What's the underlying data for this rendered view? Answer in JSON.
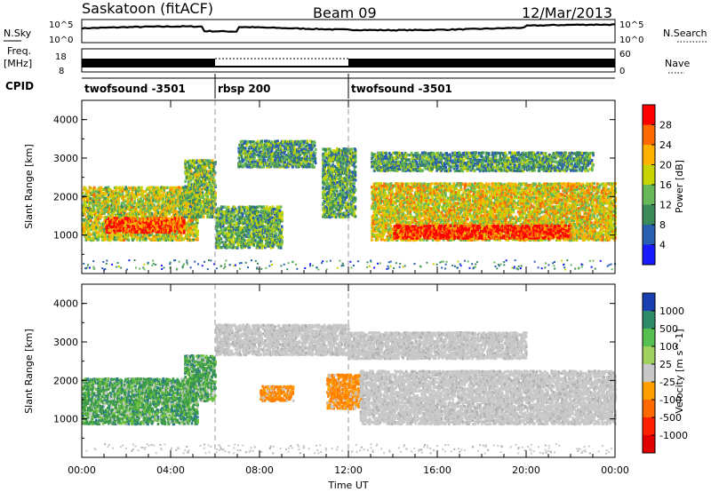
{
  "header": {
    "station": "Saskatoon (fitACF)",
    "beam": "Beam 09",
    "date": "12/Mar/2013"
  },
  "strips": {
    "nsky_label": "N.Sky",
    "nsky_ticks": [
      "10^5",
      "10^0"
    ],
    "nsearch_label": "N.Search",
    "nsearch_ticks": [
      "10^5",
      "10^0"
    ],
    "freq_label": "Freq.",
    "freq_unit": "[MHz]",
    "freq_ticks": [
      "18",
      "8"
    ],
    "nave_label": "Nave",
    "nave_ticks": [
      "60",
      "0"
    ],
    "cpid_label": "CPID",
    "cpid_segments": [
      {
        "start_hour": 0,
        "end_hour": 6,
        "label": "twofsound -3501"
      },
      {
        "start_hour": 6,
        "end_hour": 12,
        "label": "rbsp 200"
      },
      {
        "start_hour": 12,
        "end_hour": 24,
        "label": "twofsound -3501"
      }
    ]
  },
  "chart_data": [
    {
      "type": "heatmap",
      "title": "",
      "ylabel": "Slant Range [km]",
      "ylim": [
        0,
        4500
      ],
      "yticks": [
        "4000",
        "3000",
        "2000",
        "1000"
      ],
      "xlim": [
        0,
        24
      ],
      "colorbar_label": "Power [dB]",
      "colorbar_ticks": [
        "28",
        "24",
        "20",
        "16",
        "12",
        "8",
        "4"
      ],
      "colorbar_colors": [
        "#ff0000",
        "#ff6a00",
        "#ffb000",
        "#c8d400",
        "#68b85a",
        "#3b8a5a",
        "#2a5fb0",
        "#1a1aff"
      ],
      "echo_bands": [
        {
          "t0": 0.0,
          "t1": 5.2,
          "r0": 900,
          "r1": 2300,
          "level": 0.55
        },
        {
          "t0": 1.0,
          "t1": 4.6,
          "r0": 1100,
          "r1": 1500,
          "level": 0.85
        },
        {
          "t0": 4.6,
          "t1": 6.0,
          "r0": 1500,
          "r1": 3000,
          "level": 0.45
        },
        {
          "t0": 6.0,
          "t1": 9.0,
          "r0": 700,
          "r1": 1800,
          "level": 0.4
        },
        {
          "t0": 7.0,
          "t1": 10.5,
          "r0": 2800,
          "r1": 3500,
          "level": 0.35
        },
        {
          "t0": 10.8,
          "t1": 12.3,
          "r0": 1500,
          "r1": 3300,
          "level": 0.4
        },
        {
          "t0": 13.0,
          "t1": 24.0,
          "r0": 900,
          "r1": 2400,
          "level": 0.6
        },
        {
          "t0": 14.0,
          "t1": 22.0,
          "r0": 950,
          "r1": 1300,
          "level": 0.92
        },
        {
          "t0": 13.0,
          "t1": 23.0,
          "r0": 2700,
          "r1": 3200,
          "level": 0.35
        }
      ]
    },
    {
      "type": "heatmap",
      "title": "",
      "ylabel": "Slant Range [km]",
      "ylim": [
        0,
        4500
      ],
      "yticks": [
        "4000",
        "3000",
        "2000",
        "1000"
      ],
      "xlim": [
        0,
        24
      ],
      "xticks": [
        "00:00",
        "04:00",
        "08:00",
        "12:00",
        "16:00",
        "20:00",
        "00:00"
      ],
      "xlabel": "Time UT",
      "colorbar_label": "Velocity [m s^-1]",
      "colorbar_ticks": [
        "1000",
        "500",
        "100",
        "25",
        "-25",
        "-100",
        "-500",
        "-1000"
      ],
      "colorbar_colors": [
        "#1a3fb0",
        "#2f8a6a",
        "#55c050",
        "#a0d060",
        "#c8c8c8",
        "#ffa000",
        "#ff6a00",
        "#ff2000",
        "#e00000"
      ],
      "echo_bands": [
        {
          "t0": 0.0,
          "t1": 5.2,
          "r0": 900,
          "r1": 2100,
          "class": "pos"
        },
        {
          "t0": 4.6,
          "t1": 6.0,
          "r0": 1500,
          "r1": 2700,
          "class": "pos"
        },
        {
          "t0": 6.0,
          "t1": 12.0,
          "r0": 2700,
          "r1": 3500,
          "class": "ground"
        },
        {
          "t0": 11.0,
          "t1": 12.6,
          "r0": 1300,
          "r1": 2200,
          "class": "neg"
        },
        {
          "t0": 12.5,
          "t1": 24.0,
          "r0": 900,
          "r1": 2300,
          "class": "ground"
        },
        {
          "t0": 12.0,
          "t1": 20.0,
          "r0": 2600,
          "r1": 3300,
          "class": "ground"
        },
        {
          "t0": 8.0,
          "t1": 9.5,
          "r0": 1500,
          "r1": 1900,
          "class": "neg"
        }
      ]
    }
  ]
}
